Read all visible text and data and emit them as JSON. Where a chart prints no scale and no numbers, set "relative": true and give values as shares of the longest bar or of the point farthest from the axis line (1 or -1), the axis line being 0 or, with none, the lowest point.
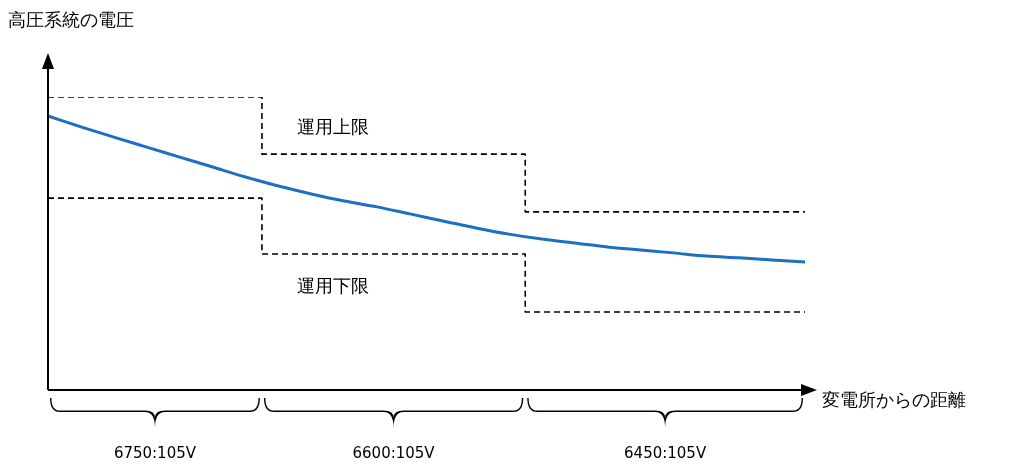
{
  "chart_data": {
    "type": "line",
    "relative": true,
    "ylabel": "高圧系統の電圧",
    "xlabel": "変電所からの距離",
    "categories": [
      null,
      null,
      null,
      null,
      null,
      null,
      null,
      null,
      null,
      null,
      null,
      null,
      null,
      null,
      null,
      null,
      null,
      null,
      null,
      null,
      null,
      null,
      null,
      null
    ],
    "annotations": [
      "6750:105V",
      "6600:105V",
      "6450:105V"
    ],
    "grid": false,
    "legend": false,
    "marker": "none",
    "series": [
      {
        "name": "運用上限",
        "type": "step",
        "color": "#000000",
        "line_style": "dashed",
        "values": [
          1,
          1,
          1,
          1,
          1,
          1,
          1,
          0.805,
          0.805,
          0.805,
          0.805,
          0.805,
          0.805,
          0.805,
          0.805,
          0.608,
          0.608,
          0.608,
          0.608,
          0.608,
          0.608,
          0.608,
          0.608,
          0.608
        ]
      },
      {
        "name": "運用下限",
        "type": "step",
        "color": "#000000",
        "line_style": "dashed",
        "values": [
          0.655,
          0.655,
          0.655,
          0.655,
          0.655,
          0.655,
          0.655,
          0.464,
          0.464,
          0.464,
          0.464,
          0.464,
          0.464,
          0.464,
          0.464,
          0.266,
          0.266,
          0.266,
          0.266,
          0.266,
          0.266,
          0.266,
          0.266,
          0.266
        ]
      },
      {
        "color": "#1f6fc0",
        "line_style": "solid",
        "values": [
          0.935,
          0.898,
          0.863,
          0.829,
          0.795,
          0.761,
          0.727,
          0.696,
          0.669,
          0.645,
          0.625,
          0.601,
          0.577,
          0.553,
          0.532,
          0.515,
          0.502,
          0.488,
          0.478,
          0.468,
          0.457,
          0.451,
          0.444,
          0.437
        ]
      }
    ]
  }
}
